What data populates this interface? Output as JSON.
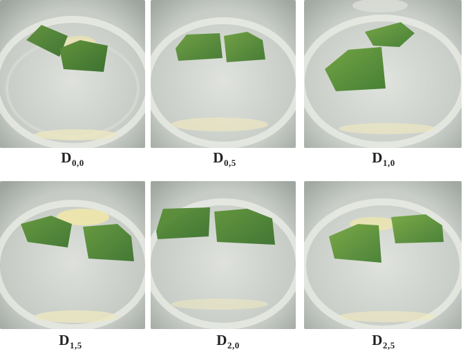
{
  "figure": {
    "panels": [
      {
        "id": "D0,0",
        "base": "D",
        "subscript": "0,0"
      },
      {
        "id": "D0,5",
        "base": "D",
        "subscript": "0,5"
      },
      {
        "id": "D1,0",
        "base": "D",
        "subscript": "1,0"
      },
      {
        "id": "D1,5",
        "base": "D",
        "subscript": "1,5"
      },
      {
        "id": "D2,0",
        "base": "D",
        "subscript": "2,0"
      },
      {
        "id": "D2,5",
        "base": "D",
        "subscript": "2,5"
      }
    ]
  },
  "colors": {
    "well_bg": "#c9cdc8",
    "well_ring": "#e9ece6",
    "leaf_dark": "#3f7a2c",
    "leaf_light": "#6ea23a",
    "highlight": "#f1e8a8"
  }
}
